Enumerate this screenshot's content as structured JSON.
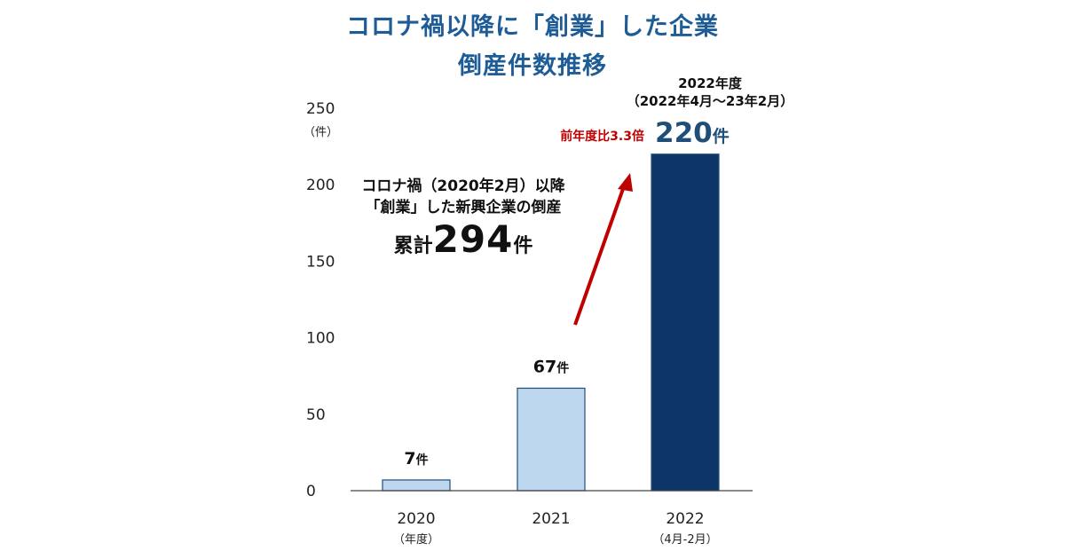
{
  "chart_data": {
    "type": "bar",
    "title": "コロナ禍以降に「創業」した企業",
    "subtitle": "倒産件数推移",
    "ylabel": "",
    "y_unit": "（件）",
    "ylim": [
      0,
      250
    ],
    "yticks": [
      "0",
      "50",
      "100",
      "150",
      "200",
      "250"
    ],
    "categories": [
      "2020",
      "2021",
      "2022"
    ],
    "category_sublabels": [
      "（年度）",
      "",
      "（4月-2月）"
    ],
    "values": [
      7,
      67,
      220
    ],
    "value_labels": [
      "7",
      "67",
      "220"
    ],
    "value_unit": "件",
    "bar_colors": [
      "#bdd7ee",
      "#bdd7ee",
      "#0e3567"
    ],
    "bar_outline": "#1f4e79",
    "highlight_header": [
      "2022年度",
      "（2022年4月～23年2月）"
    ],
    "growth_label": "前年度比3.3倍",
    "growth_color": "#c00000",
    "highlight_value_color": "#1f4e79",
    "summary_lines": [
      "コロナ禍（2020年2月）以降",
      "「創業」した新興企業の倒産"
    ],
    "summary_prefix": "累計",
    "summary_total": "294",
    "summary_unit": "件"
  }
}
